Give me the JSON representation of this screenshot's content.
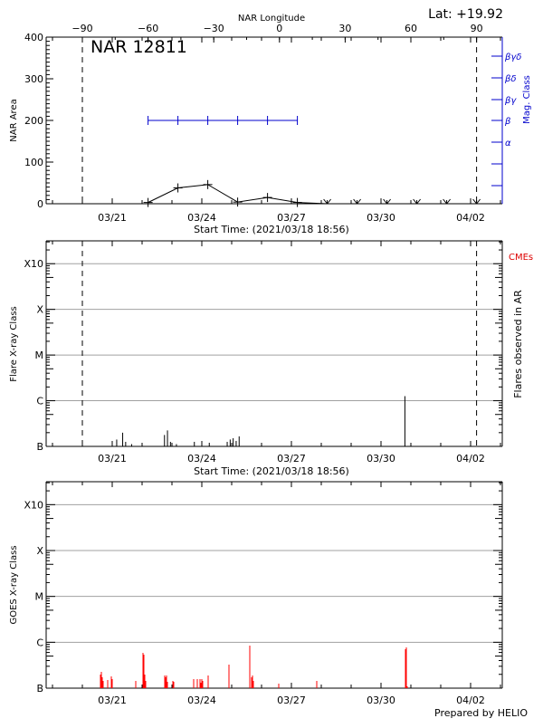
{
  "chart_data": [
    {
      "type": "line",
      "panel": "top",
      "title": "NAR 12811",
      "annotation_top_right": "Lat: +19.92",
      "top_axis_label": "NAR Longitude",
      "top_axis_ticks": [
        "-90",
        "-60",
        "-30",
        "0",
        "30",
        "60",
        "90"
      ],
      "ylabel": "NAR Area",
      "ylim": [
        0,
        400
      ],
      "y_ticks": [
        "0",
        "100",
        "200",
        "300",
        "400"
      ],
      "right_axis_label": "Mag. Class",
      "right_axis_ticks": [
        "α",
        "β",
        "βγ",
        "βδ",
        "βγδ"
      ],
      "x_ticks": [
        "03/21",
        "03/24",
        "03/27",
        "03/30",
        "04/02"
      ],
      "xlabel": "Start Time: (2021/03/18 18:56)",
      "series": [
        {
          "name": "NAR Area",
          "color": "#000000",
          "x_days": [
            4.2,
            5.2,
            6.2,
            7.2,
            8.2,
            9.2,
            10.2,
            11.2,
            12.2,
            13.2,
            14.2,
            15.2
          ],
          "values": [
            3,
            38,
            46,
            4,
            15,
            3,
            0,
            0,
            0,
            0,
            0,
            0
          ]
        },
        {
          "name": "Mag. Class",
          "color": "#0000cc",
          "x_days": [
            4.2,
            5.2,
            6.2,
            7.2,
            8.2,
            9.2
          ],
          "values": [
            "β",
            "β",
            "β",
            "β",
            "β",
            "β"
          ]
        }
      ],
      "dashed_lines_days": [
        2.0,
        15.2
      ]
    },
    {
      "type": "bar",
      "panel": "middle",
      "ylabel": "Flare X-ray Class",
      "right_label": "Flares observed in AR",
      "legend_entry": "CMEs",
      "y_ticks": [
        "B",
        "C",
        "M",
        "X",
        "X10"
      ],
      "x_ticks": [
        "03/21",
        "03/24",
        "03/27",
        "03/30",
        "04/02"
      ],
      "xlabel": "Start Time: (2021/03/18 18:56)",
      "flares_days": [
        3.15,
        3.35,
        3.45,
        3.65,
        4.75,
        4.85,
        4.95,
        5.15,
        5.75,
        6.25,
        6.85,
        6.95,
        7.05,
        7.15,
        7.25,
        12.8
      ],
      "flares_logflux": [
        -6.85,
        -6.7,
        -6.9,
        -6.95,
        -6.75,
        -6.65,
        -6.9,
        -6.95,
        -6.9,
        -6.92,
        -6.9,
        -6.85,
        -6.82,
        -6.88,
        -6.78,
        -5.9
      ],
      "dashed_lines_days": [
        2.0,
        15.2
      ]
    },
    {
      "type": "bar",
      "panel": "bottom",
      "ylabel": "GOES X-ray Class",
      "y_ticks": [
        "B",
        "C",
        "M",
        "X",
        "X10"
      ],
      "x_ticks": [
        "03/21",
        "03/24",
        "03/27",
        "03/30",
        "04/02"
      ],
      "credit": "Prepared by HELIO",
      "series_color": "#ff0000"
    }
  ],
  "labels": {
    "title": "NAR 12811",
    "lat": "Lat: +19.92",
    "top_axis": "NAR Longitude",
    "nar_area": "NAR Area",
    "mag_class": "Mag. Class",
    "start_time": "Start Time: (2021/03/18 18:56)",
    "flare_class": "Flare X-ray Class",
    "flares_observed": "Flares observed in AR",
    "cmes": "CMEs",
    "goes_class": "GOES X-ray Class",
    "credit": "Prepared by HELIO"
  },
  "colors": {
    "mag": "#0000cc",
    "cme": "#dd0000",
    "goes": "#ff0000",
    "grid": "#a0a0a0"
  }
}
